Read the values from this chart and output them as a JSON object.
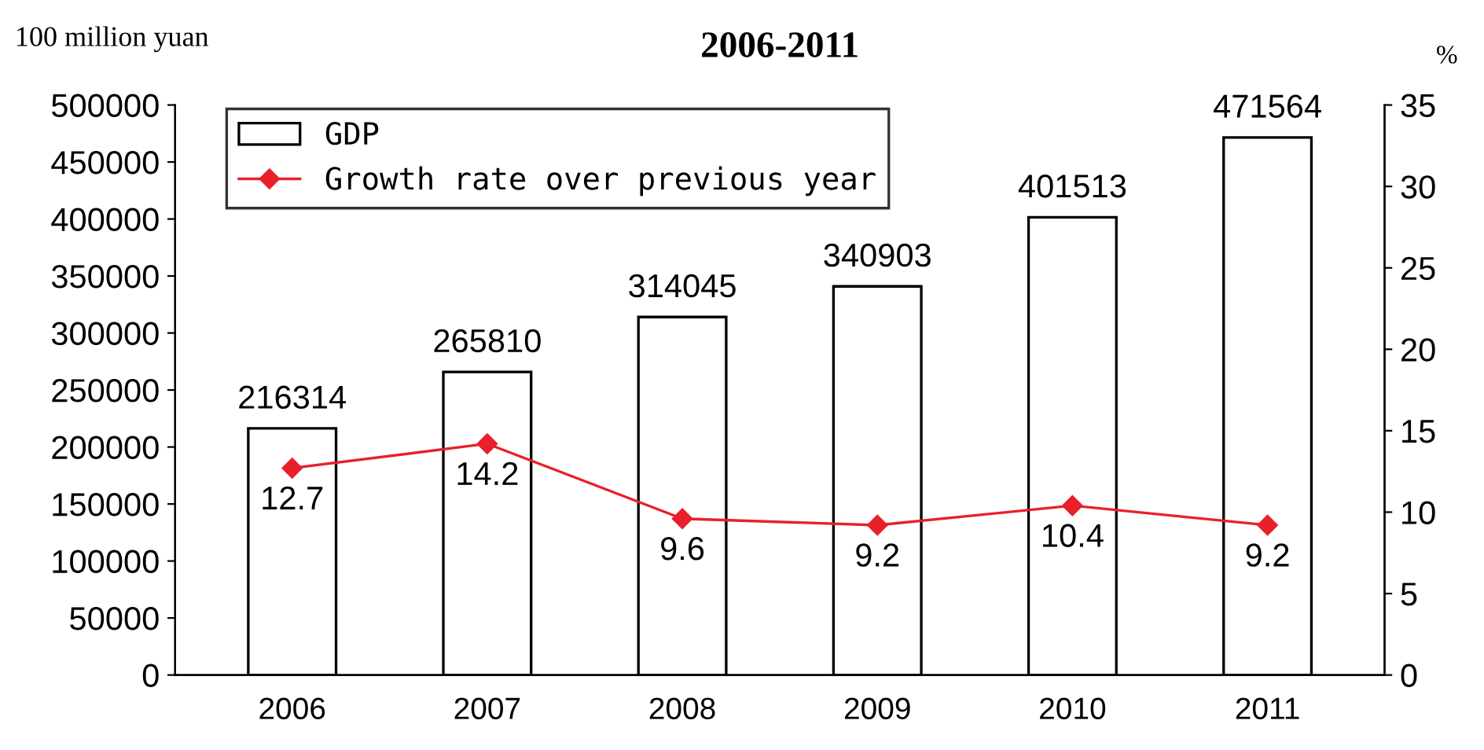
{
  "chart_data": {
    "type": "bar",
    "title": "2006-2011",
    "ylabel": "100 million yuan",
    "y2label": "%",
    "categories": [
      "2006",
      "2007",
      "2008",
      "2009",
      "2010",
      "2011"
    ],
    "series": [
      {
        "name": "GDP",
        "color": "#ffffff",
        "values": [
          216314,
          265810,
          314045,
          340903,
          401513,
          471564
        ]
      },
      {
        "name": "Growth rate over previous year",
        "type": "line",
        "axis": "y2",
        "color": "#e8202a",
        "marker": "diamond",
        "values": [
          12.7,
          14.2,
          9.6,
          9.2,
          10.4,
          9.2
        ]
      }
    ],
    "ylim": [
      0,
      500000
    ],
    "yticks": [
      0,
      50000,
      100000,
      150000,
      200000,
      250000,
      300000,
      350000,
      400000,
      450000,
      500000
    ],
    "y2lim": [
      0,
      35
    ],
    "y2ticks": [
      0,
      5,
      10,
      15,
      20,
      25,
      30,
      35
    ],
    "data_labels": true,
    "legend": "top left",
    "grid": false
  }
}
